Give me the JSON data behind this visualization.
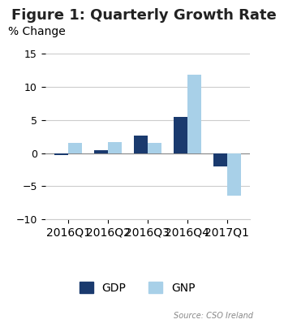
{
  "title": "Figure 1: Quarterly Growth Rate",
  "ylabel": "% Change",
  "source": "Source: CSO Ireland",
  "categories": [
    "2016Q1",
    "2016Q2",
    "2016Q3",
    "2016Q4",
    "2017Q1"
  ],
  "gdp_values": [
    -0.3,
    0.4,
    2.6,
    5.5,
    -2.0
  ],
  "gnp_values": [
    1.5,
    1.7,
    1.5,
    11.8,
    -6.5
  ],
  "gdp_color": "#1a3a6e",
  "gnp_color": "#a8d0e8",
  "ylim": [
    -10,
    17
  ],
  "yticks": [
    -10,
    -5,
    0,
    5,
    10,
    15
  ],
  "bar_width": 0.35,
  "background_color": "#ffffff",
  "grid_color": "#cccccc",
  "title_fontsize": 13,
  "label_fontsize": 10,
  "tick_fontsize": 9,
  "legend_fontsize": 10
}
